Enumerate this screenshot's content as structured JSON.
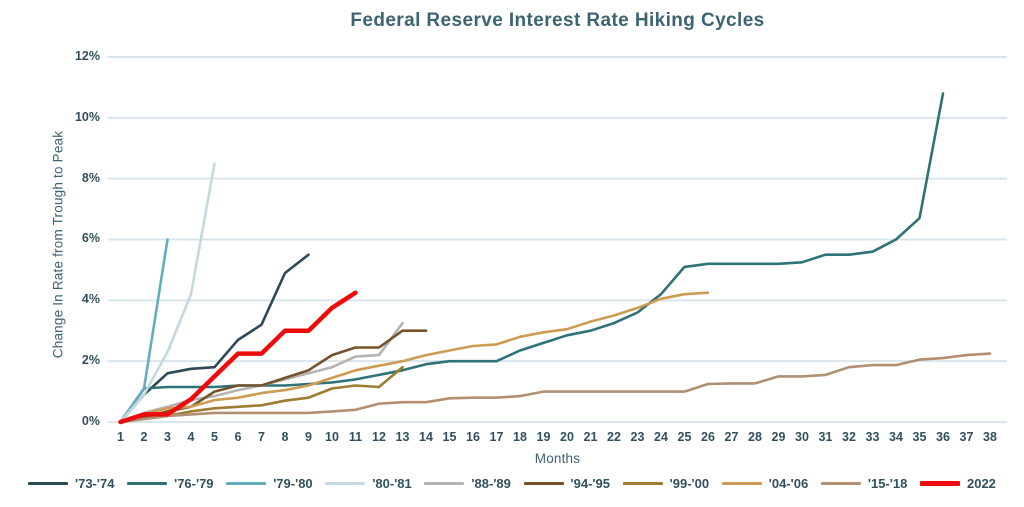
{
  "chart_data": {
    "type": "line",
    "title": "Federal Reserve Interest Rate Hiking Cycles",
    "xlabel": "Months",
    "ylabel": "Change In Rate from Trough to Peak",
    "y_tick_labels": [
      "0%",
      "2%",
      "4%",
      "6%",
      "8%",
      "10%",
      "12%"
    ],
    "y_tick_values": [
      0,
      2,
      4,
      6,
      8,
      10,
      12
    ],
    "x_ticks": [
      1,
      2,
      3,
      4,
      5,
      6,
      7,
      8,
      9,
      10,
      11,
      12,
      13,
      14,
      15,
      16,
      17,
      18,
      19,
      20,
      21,
      22,
      23,
      24,
      25,
      26,
      27,
      28,
      29,
      30,
      31,
      32,
      33,
      34,
      35,
      36,
      37,
      38
    ],
    "xlim": [
      1,
      38
    ],
    "ylim_pct": [
      0,
      12
    ],
    "grid": "horizontal",
    "gridline_color": "#d9e5eb",
    "background_color": "#ffffff",
    "text_color": "#31505d",
    "title_color": "#3c6472",
    "legend_position": "bottom",
    "series": [
      {
        "name": "'73-'74",
        "color": "#2d4a57",
        "emphasis": false,
        "values": [
          0,
          0.9,
          1.6,
          1.75,
          1.8,
          2.7,
          3.2,
          4.9,
          5.5
        ]
      },
      {
        "name": "'76-'79",
        "color": "#2f7376",
        "emphasis": false,
        "values": [
          0,
          1.1,
          1.15,
          1.15,
          1.15,
          1.2,
          1.2,
          1.2,
          1.25,
          1.3,
          1.4,
          1.55,
          1.7,
          1.9,
          2.0,
          2.0,
          2.0,
          2.35,
          2.6,
          2.85,
          3.0,
          3.25,
          3.6,
          4.2,
          5.1,
          5.2,
          5.2,
          5.2,
          5.2,
          5.25,
          5.5,
          5.5,
          5.6,
          6.0,
          6.7,
          10.8
        ]
      },
      {
        "name": "'79-'80",
        "color": "#62aebc",
        "emphasis": false,
        "values": [
          0,
          1.1,
          6.0
        ]
      },
      {
        "name": "'80-'81",
        "color": "#c4d9df",
        "emphasis": false,
        "values": [
          0,
          0.9,
          2.3,
          4.2,
          8.5
        ]
      },
      {
        "name": "'88-'89",
        "color": "#b4b3af",
        "emphasis": false,
        "values": [
          0,
          0.3,
          0.5,
          0.72,
          0.85,
          1.05,
          1.2,
          1.4,
          1.6,
          1.8,
          2.15,
          2.2,
          3.25
        ]
      },
      {
        "name": "'94-'95",
        "color": "#75522b",
        "emphasis": false,
        "values": [
          0,
          0.15,
          0.35,
          0.5,
          1.0,
          1.2,
          1.2,
          1.45,
          1.7,
          2.2,
          2.45,
          2.45,
          3.0,
          3.0
        ]
      },
      {
        "name": "'99-'00",
        "color": "#9d7d30",
        "emphasis": false,
        "values": [
          0,
          0.1,
          0.2,
          0.35,
          0.45,
          0.5,
          0.55,
          0.7,
          0.8,
          1.1,
          1.2,
          1.15,
          1.8
        ]
      },
      {
        "name": "'04-'06",
        "color": "#cd9c52",
        "emphasis": false,
        "values": [
          0,
          0.25,
          0.45,
          0.5,
          0.72,
          0.8,
          0.95,
          1.05,
          1.2,
          1.45,
          1.7,
          1.85,
          2.0,
          2.2,
          2.35,
          2.5,
          2.55,
          2.8,
          2.95,
          3.05,
          3.3,
          3.5,
          3.75,
          4.05,
          4.2,
          4.25
        ]
      },
      {
        "name": "'15-'18",
        "color": "#b28f70",
        "emphasis": false,
        "values": [
          0,
          0.1,
          0.2,
          0.25,
          0.3,
          0.3,
          0.3,
          0.3,
          0.3,
          0.35,
          0.4,
          0.6,
          0.65,
          0.65,
          0.78,
          0.8,
          0.8,
          0.85,
          1.0,
          1.0,
          1.0,
          1.0,
          1.0,
          1.0,
          1.0,
          1.25,
          1.27,
          1.27,
          1.5,
          1.5,
          1.55,
          1.8,
          1.87,
          1.87,
          2.05,
          2.1,
          2.2,
          2.25
        ]
      },
      {
        "name": "2022",
        "color": "#ef0b0b",
        "emphasis": true,
        "values": [
          0,
          0.25,
          0.25,
          0.75,
          1.5,
          2.25,
          2.25,
          3.0,
          3.0,
          3.75,
          4.25
        ]
      }
    ]
  }
}
